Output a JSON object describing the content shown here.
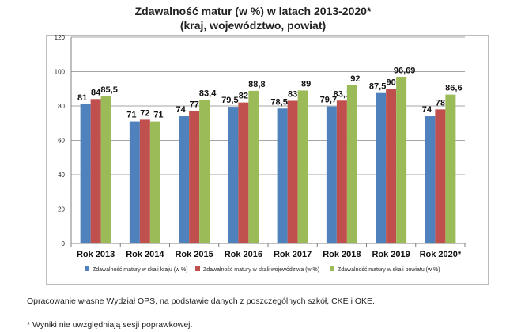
{
  "chart_data": {
    "type": "bar",
    "title": "Zdawalność matur (w %) w latach 2013-2020*",
    "subtitle": "(kraj, województwo, powiat)",
    "categories": [
      "Rok 2013",
      "Rok 2014",
      "Rok 2015",
      "Rok 2016",
      "Rok 2017",
      "Rok 2018",
      "Rok 2019",
      "Rok 2020*"
    ],
    "series": [
      {
        "name": "Zdawalność matury w skali kraju (w %)",
        "color": "#4f81bd",
        "values": [
          81,
          71,
          74,
          79.5,
          78.5,
          79.7,
          87.5,
          74
        ],
        "labels": [
          "81",
          "71",
          "74",
          "79,5",
          "78,5",
          "79,7",
          "87,5",
          "74"
        ]
      },
      {
        "name": "Zdawalność matury w skali województwa (w %)",
        "color": "#c0504d",
        "values": [
          84,
          72,
          77,
          82,
          83,
          83.1,
          90,
          78
        ],
        "labels": [
          "84",
          "72",
          "77",
          "82",
          "83",
          "83,1",
          "90",
          "78"
        ]
      },
      {
        "name": "Zdawalność matury w skali powiatu (w %)",
        "color": "#9bbb59",
        "values": [
          85.5,
          71,
          83.4,
          88.8,
          89,
          92,
          96.69,
          86.6
        ],
        "labels": [
          "85,5",
          "71",
          "83,4",
          "88,8",
          "89",
          "92",
          "96,69",
          "86,6"
        ]
      }
    ],
    "ylim": [
      0,
      120
    ],
    "yticks": [
      0,
      20,
      40,
      60,
      80,
      100,
      120
    ],
    "grid": true,
    "legend_position": "bottom"
  },
  "notes": {
    "source": "Opracowanie własne Wydział OPS, na podstawie danych z poszczególnych szkół, CKE i OKE.",
    "footnote": "* Wyniki nie uwzględniają sesji poprawkowej."
  }
}
